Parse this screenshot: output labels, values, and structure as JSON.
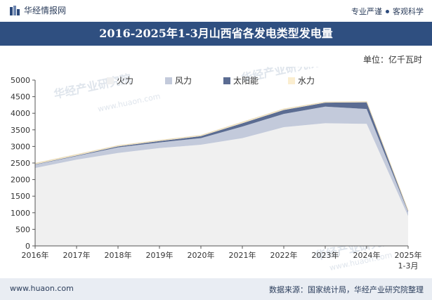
{
  "header": {
    "brand": "华经情报网",
    "slogan_left": "专业严谨",
    "slogan_right": "客观科学"
  },
  "title": "2016-2025年1-3月山西省各发电类型发电量",
  "unit_label": "单位：亿千瓦时",
  "footer": {
    "site": "www.huaon.com",
    "source": "数据来源：国家统计局，华经产业研究院整理"
  },
  "watermark": {
    "text": "华经产业研究院",
    "url": "www.huaon.com"
  },
  "colors": {
    "thermal": "#f0f0f0",
    "wind": "#c3cadb",
    "solar": "#5b6c92",
    "hydro": "#fbeed0",
    "title_bg": "#2f4f80"
  },
  "chart_data": {
    "type": "area",
    "stacked": true,
    "categories": [
      "2016年",
      "2017年",
      "2018年",
      "2019年",
      "2020年",
      "2021年",
      "2022年",
      "2023年",
      "2024年",
      "2025年1-3月"
    ],
    "series": [
      {
        "name": "火力",
        "color_key": "thermal",
        "values": [
          2350,
          2600,
          2800,
          2950,
          3050,
          3250,
          3580,
          3700,
          3680,
          900
        ]
      },
      {
        "name": "风力",
        "color_key": "wind",
        "values": [
          100,
          110,
          170,
          170,
          200,
          350,
          400,
          500,
          450,
          120
        ]
      },
      {
        "name": "太阳能",
        "color_key": "solar",
        "values": [
          10,
          15,
          30,
          40,
          60,
          100,
          120,
          120,
          200,
          40
        ]
      },
      {
        "name": "水力",
        "color_key": "hydro",
        "values": [
          30,
          30,
          25,
          25,
          25,
          30,
          30,
          20,
          20,
          5
        ]
      }
    ],
    "y_ticks": [
      0,
      500,
      1000,
      1500,
      2000,
      2500,
      3000,
      3500,
      4000,
      4500,
      5000
    ],
    "ylim": [
      0,
      5000
    ],
    "legend_position": "top-center",
    "grid": false
  }
}
